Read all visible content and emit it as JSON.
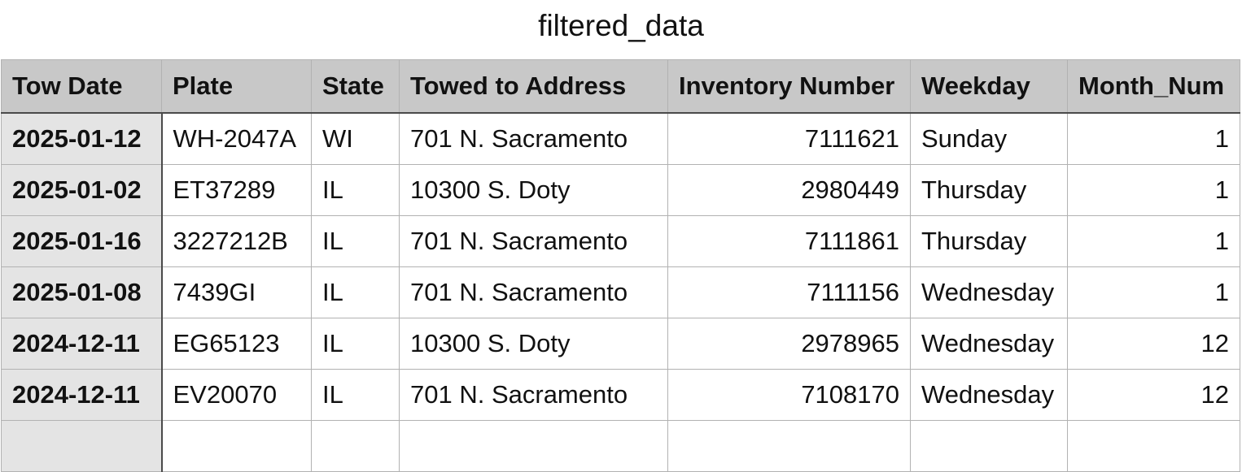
{
  "sheet": {
    "title": "filtered_data"
  },
  "table": {
    "columns": [
      "Tow Date",
      "Plate",
      "State",
      "Towed to Address",
      "Inventory Number",
      "Weekday",
      "Month_Num"
    ],
    "rows": [
      [
        "2025-01-12",
        "WH-2047A",
        "WI",
        "701 N. Sacramento",
        "7111621",
        "Sunday",
        "1"
      ],
      [
        "2025-01-02",
        "ET37289",
        "IL",
        "10300 S. Doty",
        "2980449",
        "Thursday",
        "1"
      ],
      [
        "2025-01-16",
        "3227212B",
        "IL",
        "701 N. Sacramento",
        "7111861",
        "Thursday",
        "1"
      ],
      [
        "2025-01-08",
        "7439GI",
        "IL",
        "701 N. Sacramento",
        "7111156",
        "Wednesday",
        "1"
      ],
      [
        "2024-12-11",
        "EG65123",
        "IL",
        "10300 S. Doty",
        "2978965",
        "Wednesday",
        "12"
      ],
      [
        "2024-12-11",
        "EV20070",
        "IL",
        "701 N. Sacramento",
        "7108170",
        "Wednesday",
        "12"
      ]
    ]
  }
}
